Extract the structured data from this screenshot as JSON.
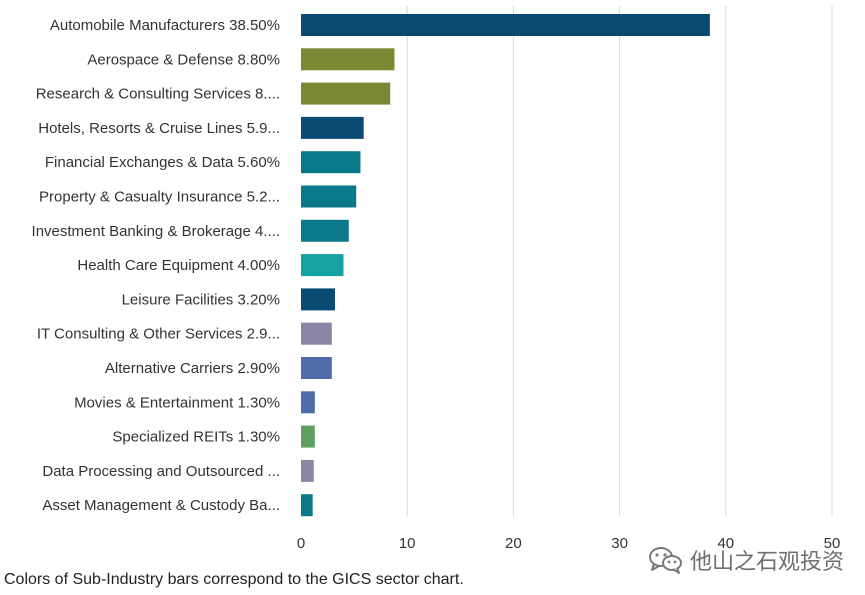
{
  "chart_data": {
    "type": "bar",
    "orientation": "horizontal",
    "categories": [
      "Automobile Manufacturers 38.50%",
      "Aerospace & Defense 8.80%",
      "Research & Consulting Services 8....",
      "Hotels, Resorts & Cruise Lines 5.9...",
      "Financial Exchanges & Data 5.60%",
      "Property & Casualty Insurance 5.2...",
      "Investment Banking & Brokerage 4....",
      "Health Care Equipment 4.00%",
      "Leisure Facilities 3.20%",
      "IT Consulting & Other Services 2.9...",
      "Alternative Carriers 2.90%",
      "Movies & Entertainment 1.30%",
      "Specialized REITs 1.30%",
      "Data Processing and Outsourced ...",
      "Asset Management & Custody Ba..."
    ],
    "values": [
      38.5,
      8.8,
      8.4,
      5.9,
      5.6,
      5.2,
      4.5,
      4.0,
      3.2,
      2.9,
      2.9,
      1.3,
      1.3,
      1.2,
      1.1
    ],
    "colors": [
      "#0a4b73",
      "#7a8a34",
      "#7a8a34",
      "#0a4b73",
      "#0a7a8a",
      "#0a7a8a",
      "#0a7a8a",
      "#14a3a0",
      "#0a4b73",
      "#8a86a4",
      "#4f6ba8",
      "#4f6ba8",
      "#5ea05e",
      "#8a86a4",
      "#0a7a8a"
    ],
    "xlim": [
      0,
      50
    ],
    "xticks": [
      0,
      10,
      20,
      30,
      40,
      50
    ],
    "grid": true,
    "title": "",
    "xlabel": "",
    "ylabel": ""
  },
  "footnote": "Colors of Sub-Industry bars correspond to the GICS sector chart.",
  "watermark": {
    "icon": "wechat-icon",
    "text": "他山之石观投资"
  }
}
